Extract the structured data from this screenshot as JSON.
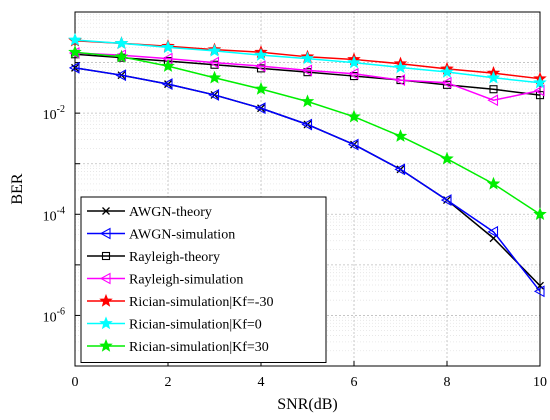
{
  "chart_data": {
    "type": "line",
    "title": "",
    "xlabel": "SNR(dB)",
    "ylabel": "BER",
    "xlim": [
      0,
      10
    ],
    "ylim": [
      1e-07,
      1
    ],
    "yscale": "log",
    "grid": true,
    "legend_position": "bottom-left",
    "x_ticks": [
      0,
      2,
      4,
      6,
      8,
      10
    ],
    "x_tick_labels": [
      "0",
      "2",
      "4",
      "6",
      "8",
      "10"
    ],
    "y_ticks": [
      {
        "value": 0.01,
        "base": "10",
        "exp": "-2"
      },
      {
        "value": 0.0001,
        "base": "10",
        "exp": "-4"
      },
      {
        "value": 1e-06,
        "base": "10",
        "exp": "-6"
      }
    ],
    "x": [
      0,
      1,
      2,
      3,
      4,
      5,
      6,
      7,
      8,
      9,
      10
    ],
    "series": [
      {
        "name": "AWGN-theory",
        "color": "#000000",
        "marker": "x",
        "values": [
          0.0786,
          0.0563,
          0.0375,
          0.0229,
          0.0125,
          0.00596,
          0.00239,
          0.000773,
          0.000191,
          3.36e-05,
          3.87e-06
        ]
      },
      {
        "name": "AWGN-simulation",
        "color": "#0000ff",
        "marker": "triangle-left",
        "values": [
          0.0786,
          0.0563,
          0.0375,
          0.0229,
          0.0125,
          0.00596,
          0.00239,
          0.000773,
          0.000191,
          4.5e-05,
          3e-06
        ]
      },
      {
        "name": "Rayleigh-theory",
        "color": "#000000",
        "marker": "square",
        "values": [
          0.146,
          0.125,
          0.107,
          0.0906,
          0.0768,
          0.0646,
          0.0541,
          0.0451,
          0.0363,
          0.0297,
          0.0227
        ]
      },
      {
        "name": "Rayleigh-simulation",
        "color": "#ff00ff",
        "marker": "triangle-left",
        "values": [
          0.155,
          0.14,
          0.12,
          0.1,
          0.085,
          0.07,
          0.06,
          0.045,
          0.04,
          0.018,
          0.028
        ]
      },
      {
        "name": "Rician-simulation|Kf=-30",
        "color": "#ff0000",
        "marker": "star",
        "values": [
          0.27,
          0.24,
          0.21,
          0.18,
          0.16,
          0.13,
          0.115,
          0.095,
          0.075,
          0.062,
          0.048
        ]
      },
      {
        "name": "Rician-simulation|Kf=0",
        "color": "#00ffff",
        "marker": "star",
        "values": [
          0.28,
          0.24,
          0.2,
          0.17,
          0.14,
          0.12,
          0.1,
          0.08,
          0.065,
          0.05,
          0.04
        ]
      },
      {
        "name": "Rician-simulation|Kf=30",
        "color": "#00ee00",
        "marker": "star",
        "values": [
          0.16,
          0.13,
          0.085,
          0.05,
          0.03,
          0.017,
          0.0085,
          0.0035,
          0.00125,
          0.0004,
          0.0001
        ]
      }
    ]
  }
}
